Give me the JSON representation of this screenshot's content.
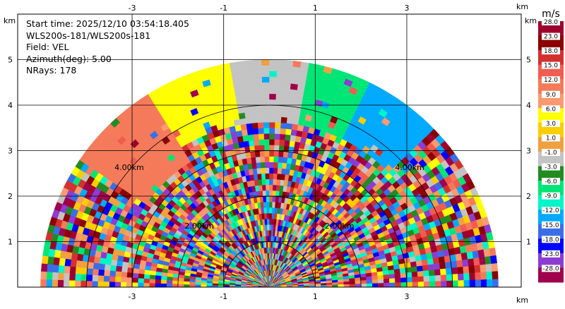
{
  "info": {
    "lines": [
      "Start time: 2025/12/10 03:54:18.405",
      "WLS200s-181/WLS200s-181",
      "Field: VEL",
      "Azimuth(deg): 5.00",
      "NRays: 178"
    ]
  },
  "chart_data": {
    "type": "heatmap",
    "projection": "polar-sector (radar RHI-style, elevation 0-180 deg)",
    "x_unit": "km",
    "y_unit": "km",
    "xlim": [
      -5.5,
      5.5
    ],
    "ylim": [
      0,
      6.0
    ],
    "x_ticks": [
      "-3",
      "-1",
      "1",
      "3"
    ],
    "y_ticks": [
      "1",
      "2",
      "3",
      "4",
      "5"
    ],
    "x_tick_values": [
      -3,
      -1,
      1,
      3
    ],
    "y_tick_values": [
      1,
      2,
      3,
      4,
      5
    ],
    "grid": true,
    "max_range_km": 5.0,
    "range_rings_km": [
      1,
      2,
      3,
      4
    ],
    "range_ring_labels": [
      {
        "text": "2.00km",
        "side": "left"
      },
      {
        "text": "2.00km",
        "side": "right"
      },
      {
        "text": "4.00km",
        "side": "left"
      },
      {
        "text": "4.00km",
        "side": "right"
      }
    ],
    "colorbar": {
      "unit": "m/s",
      "position": "right",
      "levels": [
        "28.0",
        "23.0",
        "18.0",
        "15.0",
        "12.0",
        "9.0",
        "6.0",
        "3.0",
        "1.0",
        "-1.0",
        "-3.0",
        "-6.0",
        "-9.0",
        "-12.0",
        "-15.0",
        "-18.0",
        "-23.0",
        "-28.0"
      ],
      "colors": [
        "#a00028",
        "#c81e32",
        "#8b0000",
        "#d22d32",
        "#f05a4b",
        "#fa8264",
        "#fad200",
        "#ffff00",
        "#f0a028",
        "#f0963c",
        "#c3c3c3",
        "#228b22",
        "#00cd66",
        "#00f5b4",
        "#00beff",
        "#4169e1",
        "#0000ff",
        "#1e1ed2",
        "#8c32d2",
        "#b43cc8",
        "#a00050",
        "#820032"
      ]
    },
    "colorbar_ranges": [
      {
        "label": "28.0",
        "color": "#a0002c"
      },
      {
        "label": "23.0",
        "color": "#8b0000"
      },
      {
        "label": "18.0",
        "color": "#d43030"
      },
      {
        "label": "15.0",
        "color": "#f25c50"
      },
      {
        "label": "12.0",
        "color": "#f47a5a"
      },
      {
        "label": "9.0",
        "color": "#fa9a6e"
      },
      {
        "label": "6.0",
        "color": "#ffff00"
      },
      {
        "label": "3.0",
        "color": "#fccd00"
      },
      {
        "label": "1.0",
        "color": "#f0a040"
      },
      {
        "label": "-1.0",
        "color": "#c3c3c3"
      },
      {
        "label": "-3.0",
        "color": "#228b22"
      },
      {
        "label": "-6.0",
        "color": "#00e676"
      },
      {
        "label": "-9.0",
        "color": "#00f5c8"
      },
      {
        "label": "-12.0",
        "color": "#00aaff"
      },
      {
        "label": "-15.0",
        "color": "#3a6ee8"
      },
      {
        "label": "-18.0",
        "color": "#0000ff"
      },
      {
        "label": "-23.0",
        "color": "#8c3cd2"
      },
      {
        "label": "-28.0",
        "color": "#a0004c"
      }
    ],
    "dominant_regions": [
      {
        "description": "near-zero band at zenith",
        "elevation_deg": [
          80,
          100
        ],
        "range_km": [
          3.6,
          5.0
        ],
        "value": 0.0
      },
      {
        "description": "yellow positive band",
        "elevation_deg": [
          100,
          122
        ],
        "range_km": [
          3.6,
          5.0
        ],
        "value": 6.0
      },
      {
        "description": "salmon positive band",
        "elevation_deg": [
          122,
          145
        ],
        "range_km": [
          3.2,
          5.0
        ],
        "value": 12.0
      },
      {
        "description": "green negative band",
        "elevation_deg": [
          65,
          80
        ],
        "range_km": [
          3.6,
          5.0
        ],
        "value": -6.0
      },
      {
        "description": "blue negative band",
        "elevation_deg": [
          45,
          65
        ],
        "range_km": [
          3.6,
          5.0
        ],
        "value": -12.0
      }
    ]
  }
}
